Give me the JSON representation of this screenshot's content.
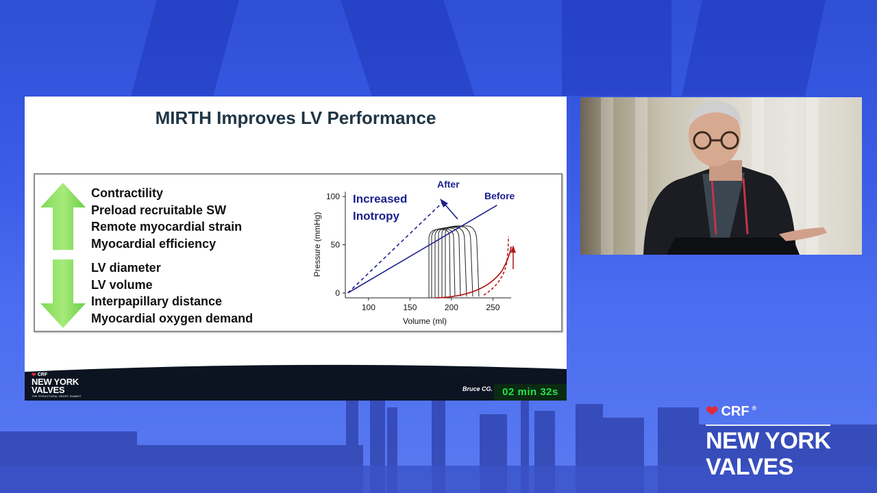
{
  "slide": {
    "title": "MIRTH Improves LV Performance",
    "increased": [
      "Contractility",
      "Preload recruitable SW",
      "Remote myocardial strain",
      "Myocardial efficiency"
    ],
    "decreased": [
      "LV diameter",
      "LV volume",
      "Interpapillary distance",
      "Myocardial oxygen demand"
    ],
    "author": "Bruce CG.",
    "timer": "02 min 32s",
    "logo": {
      "brand": "CRF",
      "name_line1": "NEW YORK",
      "name_line2": "VALVES",
      "tagline": "THE STRUCTURAL HEART SUMMIT"
    }
  },
  "chart_data": {
    "type": "line",
    "title": "",
    "xlabel": "Volume (ml)",
    "ylabel": "Pressure (mmHg)",
    "xticks": [
      100,
      150,
      200,
      250
    ],
    "yticks": [
      0,
      50,
      100
    ],
    "xlim": [
      72,
      272
    ],
    "ylim": [
      -5,
      105
    ],
    "annotations": {
      "inotropy": [
        "Increased",
        "Inotropy"
      ],
      "after": "After",
      "before": "Before"
    },
    "series": [
      {
        "name": "After",
        "style": "dashed",
        "color": "#1a1f8c",
        "points": [
          [
            75,
            0
          ],
          [
            193,
            97
          ]
        ]
      },
      {
        "name": "Before",
        "style": "solid",
        "color": "#1a1f8c",
        "points": [
          [
            75,
            0
          ],
          [
            255,
            91
          ]
        ]
      }
    ],
    "colors": {
      "line": "#1a1f8c",
      "edpvr": "#b21e1e",
      "loops": "#222222"
    }
  },
  "overlay_logo": {
    "brand": "CRF",
    "name_line1": "NEW YORK",
    "name_line2": "VALVES"
  }
}
